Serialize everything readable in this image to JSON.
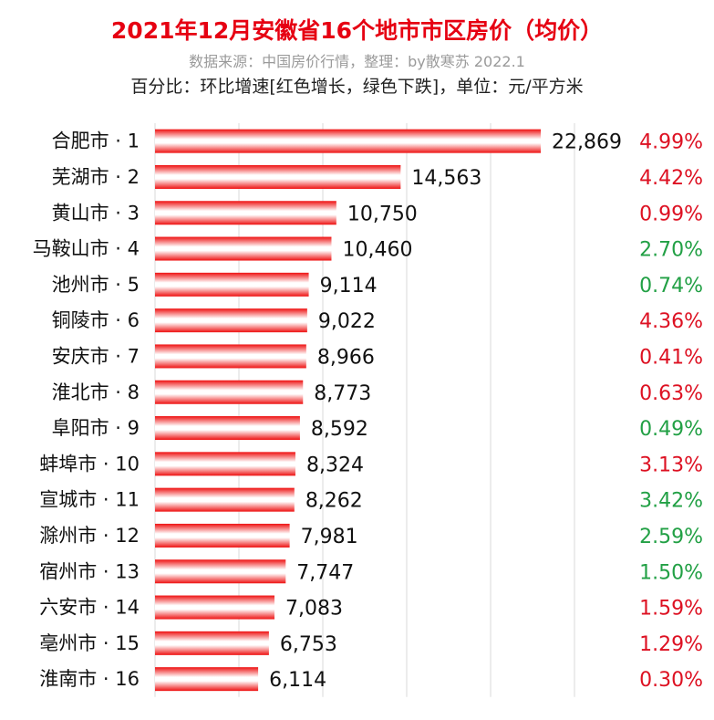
{
  "header": {
    "title": "2021年12月安徽省16个地市市区房价（均价）",
    "subtitle": "数据来源：中国房价行情，整理：by散寒苏  2022.1",
    "note": "百分比：环比增速[红色增长，绿色下跌]，单位：元/平方米"
  },
  "colors": {
    "bar": "#ee1111",
    "increase": "#dd1122",
    "decrease": "#22a045",
    "grid": "#d9d9d9"
  },
  "chart_data": {
    "type": "bar",
    "orientation": "horizontal",
    "title": "2021年12月安徽省16个地市市区房价（均价）",
    "unit": "元/平方米",
    "grid": true,
    "xlim": [
      0,
      23000
    ],
    "categories": [
      "合肥市 · 1",
      "芜湖市 · 2",
      "黄山市 · 3",
      "马鞍山市 · 4",
      "池州市 · 5",
      "铜陵市 · 6",
      "安庆市 · 7",
      "淮北市 · 8",
      "阜阳市 · 9",
      "蚌埠市 · 10",
      "宣城市 · 11",
      "滁州市 · 12",
      "宿州市 · 13",
      "六安市 · 14",
      "亳州市 · 15",
      "淮南市 · 16"
    ],
    "values": [
      22869,
      14563,
      10750,
      10460,
      9114,
      9022,
      8966,
      8773,
      8592,
      8324,
      8262,
      7981,
      7747,
      7083,
      6753,
      6114
    ],
    "value_labels": [
      "22,869",
      "14,563",
      "10,750",
      "10,460",
      "9,114",
      "9,022",
      "8,966",
      "8,773",
      "8,592",
      "8,324",
      "8,262",
      "7,981",
      "7,747",
      "7,083",
      "6,753",
      "6,114"
    ],
    "mom_change": [
      "4.99%",
      "4.42%",
      "0.99%",
      "2.70%",
      "0.74%",
      "4.36%",
      "0.41%",
      "0.63%",
      "0.49%",
      "3.13%",
      "3.42%",
      "2.59%",
      "1.50%",
      "1.59%",
      "1.29%",
      "0.30%"
    ],
    "mom_direction": [
      "up",
      "up",
      "up",
      "down",
      "down",
      "up",
      "up",
      "up",
      "down",
      "up",
      "down",
      "down",
      "down",
      "up",
      "up",
      "up"
    ]
  }
}
